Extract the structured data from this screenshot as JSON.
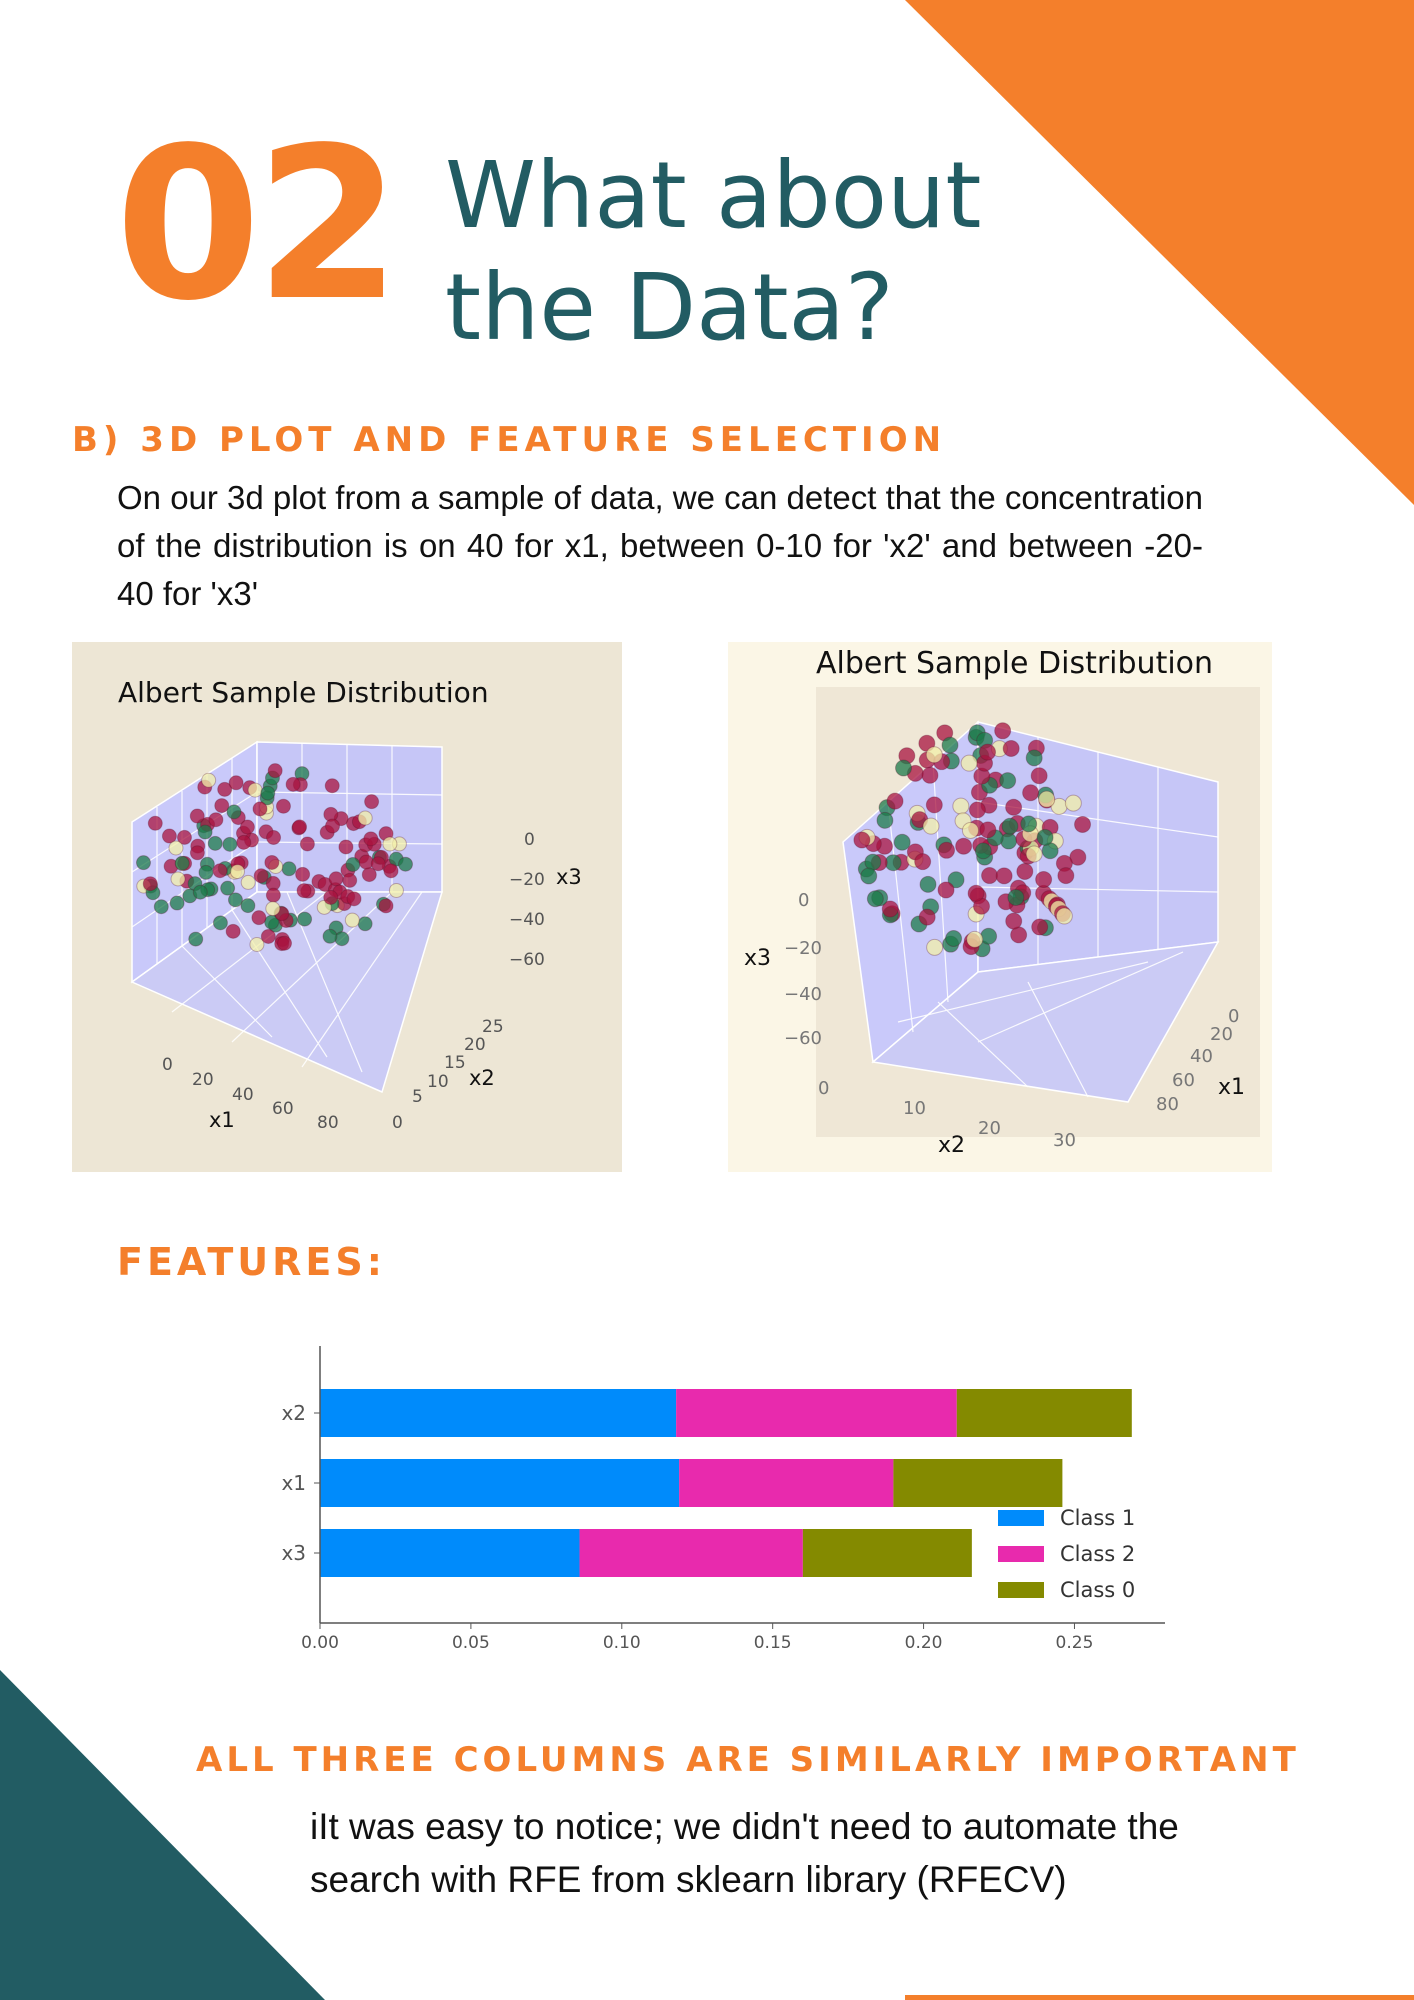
{
  "header": {
    "number": "02",
    "title": "What about the Data?"
  },
  "section": {
    "heading": "B) 3D PLOT AND FEATURE SELECTION",
    "text": "On our 3d plot from a sample of data, we can detect that the concentration of the distribution is on 40 for x1, between 0-10 for 'x2' and between -20-40 for 'x3'"
  },
  "plots": {
    "left": {
      "title": "Albert Sample Distribution",
      "x1_label": "x1",
      "x2_label": "x2",
      "x3_label": "x3",
      "x1_ticks": [
        "0",
        "20",
        "40",
        "60",
        "80"
      ],
      "x2_ticks": [
        "0",
        "5",
        "10",
        "15",
        "20",
        "25"
      ],
      "x3_ticks": [
        "0",
        "−20",
        "−40",
        "−60"
      ]
    },
    "right": {
      "title": "Albert Sample Distribution",
      "x1_label": "x1",
      "x2_label": "x2",
      "x3_label": "x3",
      "x1_ticks": [
        "0",
        "20",
        "40",
        "60",
        "80"
      ],
      "x2_ticks": [
        "0",
        "10",
        "20",
        "30"
      ],
      "x3_ticks": [
        "0",
        "−20",
        "−40",
        "−60"
      ]
    },
    "colors": {
      "crimson": "#a8133f",
      "green": "#1c7a4a",
      "cream": "#f2efa8"
    }
  },
  "features_heading": "FEATURES:",
  "chart_data": {
    "type": "bar",
    "orientation": "horizontal",
    "stacked": true,
    "categories": [
      "x2",
      "x1",
      "x3"
    ],
    "series": [
      {
        "name": "Class 1",
        "color": "#008bfb",
        "values": [
          0.118,
          0.119,
          0.086
        ]
      },
      {
        "name": "Class 2",
        "color": "#e82aad",
        "values": [
          0.093,
          0.071,
          0.074
        ]
      },
      {
        "name": "Class 0",
        "color": "#848a00",
        "values": [
          0.058,
          0.056,
          0.056
        ]
      }
    ],
    "xlim": [
      0,
      0.28
    ],
    "xticks": [
      "0.00",
      "0.05",
      "0.10",
      "0.15",
      "0.20",
      "0.25"
    ],
    "legend_position": "lower-right"
  },
  "conclusion": {
    "heading": "ALL THREE COLUMNS ARE SIMILARLY IMPORTANT",
    "text": "iIt was easy to notice; we didn't need to automate the search with RFE from sklearn library (RFECV)"
  },
  "theme": {
    "orange": "#f47f2b",
    "teal": "#225c63"
  }
}
